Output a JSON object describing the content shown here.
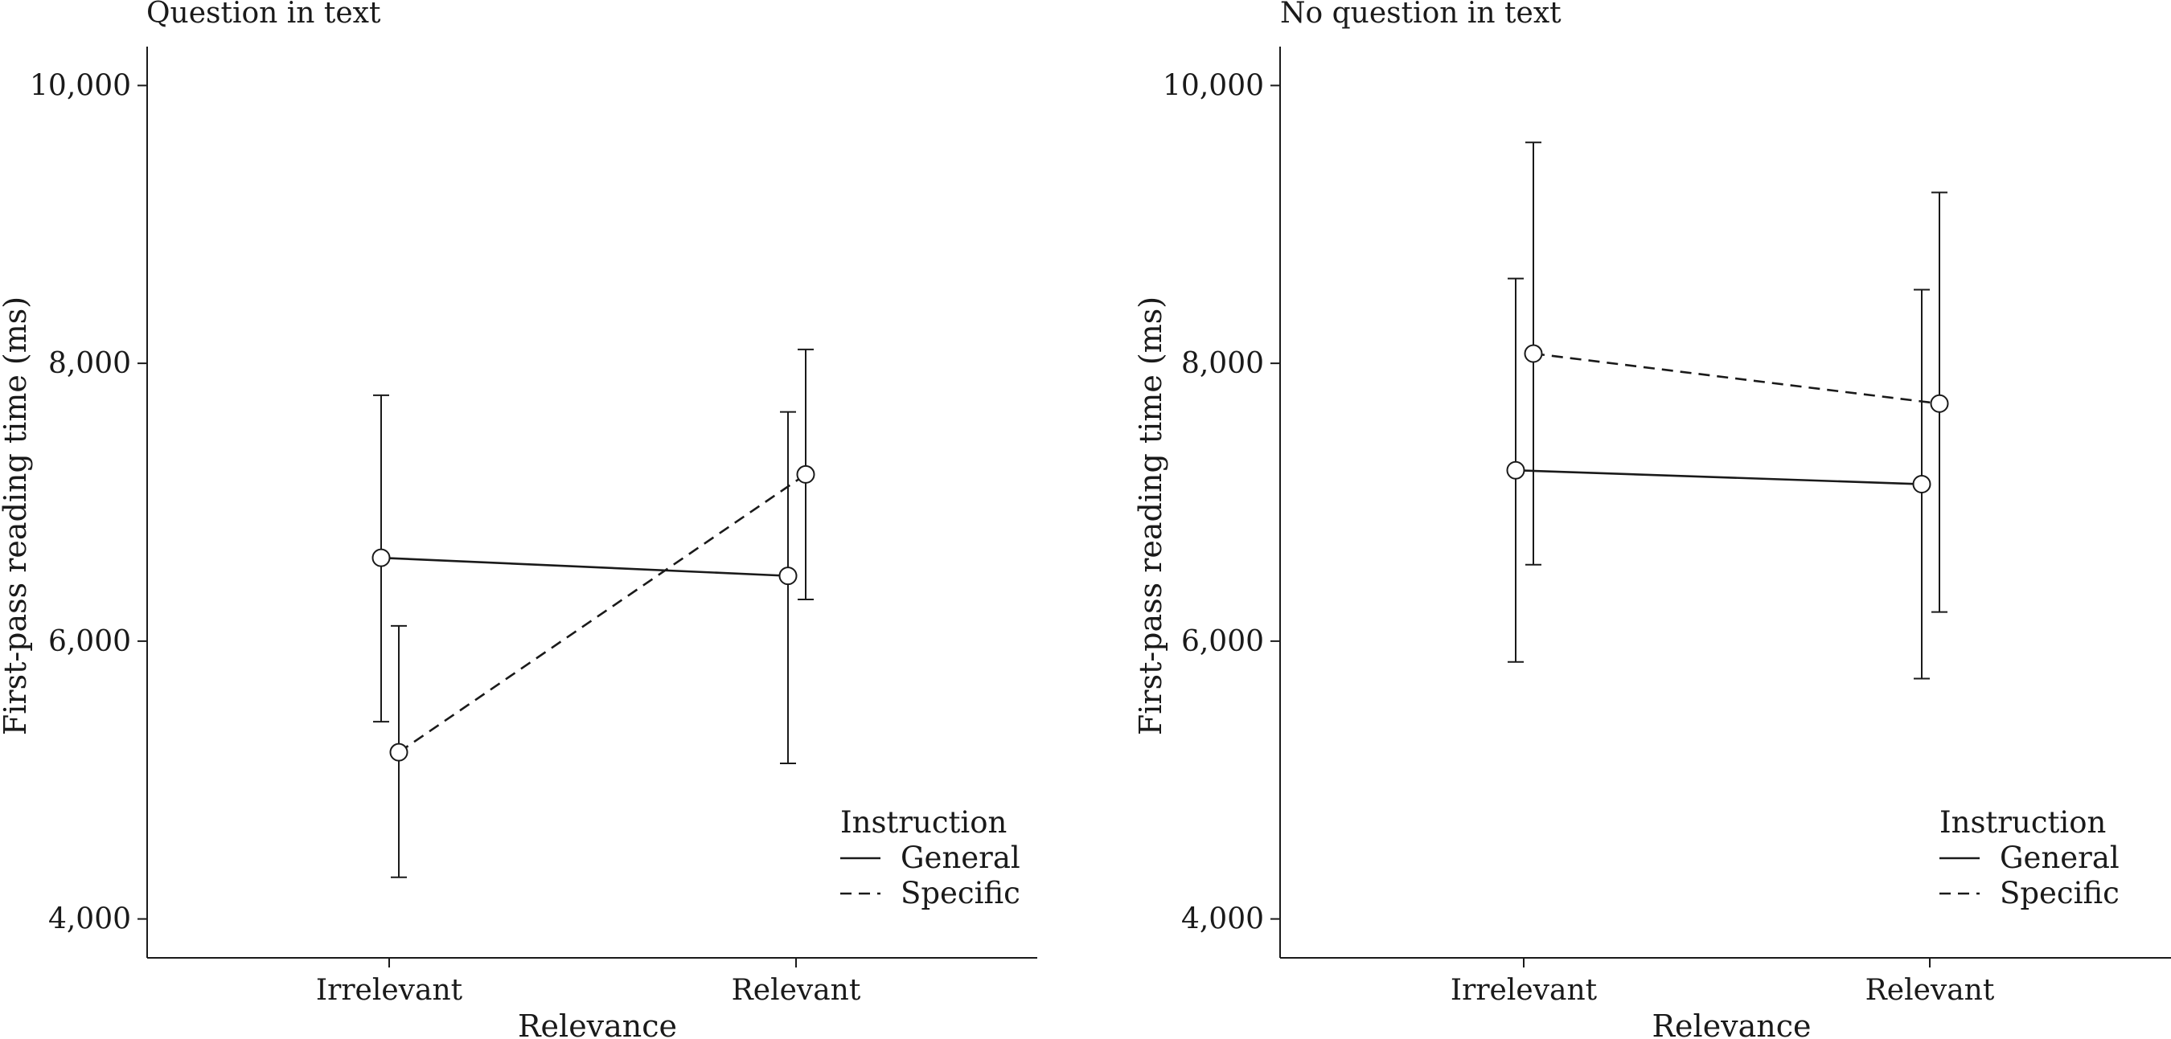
{
  "chart_data": [
    {
      "type": "line",
      "title": "Question in text",
      "xlabel": "Relevance",
      "ylabel": "First-pass reading time (ms)",
      "categories": [
        "Irrelevant",
        "Relevant"
      ],
      "ylim": [
        3720,
        10280
      ],
      "yticks": [
        4000,
        6000,
        8000,
        10000
      ],
      "ytick_labels": [
        "4,000",
        "6,000",
        "8,000",
        "10,000"
      ],
      "legend": {
        "title": "Instruction",
        "position": "bottom-right"
      },
      "series": [
        {
          "name": "General",
          "style": "solid",
          "values": [
            6600,
            6470
          ],
          "err_low": [
            5420,
            5120
          ],
          "err_high": [
            7770,
            7650
          ]
        },
        {
          "name": "Specific",
          "style": "dashed",
          "values": [
            5200,
            7200
          ],
          "err_low": [
            4300,
            6300
          ],
          "err_high": [
            6110,
            8100
          ]
        }
      ]
    },
    {
      "type": "line",
      "title": "No question in text",
      "xlabel": "Relevance",
      "ylabel": "First-pass reading time (ms)",
      "categories": [
        "Irrelevant",
        "Relevant"
      ],
      "ylim": [
        3720,
        10280
      ],
      "yticks": [
        4000,
        6000,
        8000,
        10000
      ],
      "ytick_labels": [
        "4,000",
        "6,000",
        "8,000",
        "10,000"
      ],
      "legend": {
        "title": "Instruction",
        "position": "bottom-right"
      },
      "series": [
        {
          "name": "General",
          "style": "solid",
          "values": [
            7230,
            7130
          ],
          "err_low": [
            5850,
            5730
          ],
          "err_high": [
            8610,
            8530
          ]
        },
        {
          "name": "Specific",
          "style": "dashed",
          "values": [
            8070,
            7710
          ],
          "err_low": [
            6550,
            6210
          ],
          "err_high": [
            9590,
            9230
          ]
        }
      ]
    }
  ]
}
